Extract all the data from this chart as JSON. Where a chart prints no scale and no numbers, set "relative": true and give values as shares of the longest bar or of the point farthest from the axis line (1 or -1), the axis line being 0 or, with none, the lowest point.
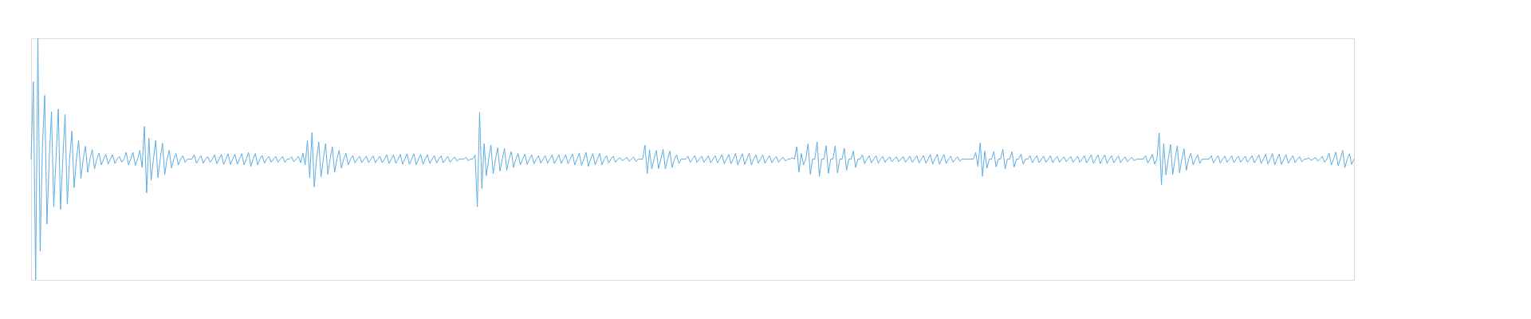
{
  "chart_data": {
    "type": "line",
    "relative": true,
    "tick_labels": false,
    "categories": [
      null,
      null,
      null,
      null,
      null,
      null,
      null,
      null,
      null,
      null,
      null,
      null,
      null,
      null,
      null,
      null,
      null,
      null,
      null,
      null,
      null,
      null,
      null,
      null,
      null,
      null,
      null,
      null,
      null,
      null,
      null,
      null,
      null,
      null,
      null,
      null,
      null,
      null,
      null,
      null,
      null,
      null,
      null,
      null,
      null,
      null,
      null,
      null,
      null,
      null,
      null,
      null,
      null,
      null,
      null,
      null,
      null,
      null,
      null,
      null,
      null,
      null,
      null,
      null,
      null,
      null,
      null,
      null,
      null,
      null,
      null,
      null,
      null,
      null,
      null,
      null,
      null,
      null,
      null,
      null,
      null,
      null,
      null,
      null,
      null,
      null,
      null,
      null,
      null,
      null,
      null,
      null,
      null,
      null,
      null,
      null,
      null,
      null,
      null,
      null,
      null,
      null,
      null,
      null,
      null,
      null,
      null,
      null,
      null,
      null,
      null,
      null,
      null,
      null,
      null,
      null,
      null,
      null,
      null,
      null,
      null,
      null,
      null,
      null,
      null,
      null,
      null,
      null,
      null,
      null,
      null,
      null,
      null,
      null,
      null,
      null,
      null,
      null,
      null,
      null,
      null,
      null,
      null,
      null,
      null,
      null,
      null,
      null,
      null,
      null,
      null,
      null,
      null,
      null,
      null,
      null,
      null,
      null,
      null,
      null,
      null,
      null,
      null,
      null,
      null,
      null,
      null,
      null,
      null,
      null,
      null,
      null,
      null,
      null,
      null,
      null,
      null,
      null,
      null,
      null,
      null,
      null,
      null,
      null,
      null,
      null,
      null,
      null,
      null,
      null,
      null,
      null,
      null,
      null,
      null,
      null,
      null,
      null,
      null,
      null,
      null,
      null,
      null,
      null,
      null,
      null,
      null,
      null,
      null,
      null,
      null,
      null,
      null,
      null,
      null,
      null,
      null,
      null,
      null,
      null,
      null,
      null,
      null,
      null,
      null,
      null,
      null,
      null,
      null,
      null,
      null,
      null,
      null,
      null,
      null,
      null,
      null,
      null,
      null,
      null,
      null,
      null,
      null,
      null,
      null,
      null,
      null,
      null,
      null,
      null,
      null,
      null,
      null,
      null,
      null,
      null,
      null,
      null,
      null,
      null,
      null,
      null,
      null,
      null,
      null,
      null,
      null,
      null,
      null,
      null,
      null,
      null,
      null,
      null,
      null,
      null,
      null,
      null,
      null,
      null,
      null,
      null,
      null,
      null,
      null,
      null,
      null,
      null,
      null,
      null,
      null,
      null,
      null,
      null,
      null,
      null,
      null,
      null,
      null,
      null,
      null,
      null,
      null,
      null,
      null,
      null,
      null,
      null,
      null,
      null,
      null,
      null,
      null,
      null,
      null,
      null,
      null,
      null,
      null,
      null,
      null,
      null,
      null,
      null,
      null,
      null,
      null,
      null,
      null,
      null,
      null,
      null,
      null,
      null,
      null,
      null,
      null,
      null,
      null,
      null,
      null,
      null,
      null,
      null,
      null,
      null,
      null,
      null,
      null,
      null,
      null,
      null,
      null,
      null,
      null,
      null,
      null,
      null,
      null,
      null,
      null,
      null,
      null,
      null,
      null,
      null,
      null,
      null,
      null,
      null,
      null,
      null,
      null,
      null,
      null,
      null,
      null,
      null,
      null,
      null,
      null,
      null,
      null,
      null,
      null,
      null,
      null,
      null,
      null,
      null,
      null,
      null,
      null,
      null,
      null,
      null,
      null,
      null,
      null,
      null,
      null,
      null,
      null,
      null,
      null,
      null,
      null,
      null,
      null,
      null,
      null,
      null,
      null,
      null,
      null,
      null,
      null,
      null,
      null,
      null,
      null,
      null,
      null,
      null,
      null,
      null,
      null,
      null,
      null,
      null,
      null,
      null,
      null,
      null,
      null,
      null,
      null,
      null,
      null,
      null,
      null,
      null,
      null,
      null,
      null,
      null,
      null,
      null,
      null,
      null,
      null,
      null,
      null,
      null,
      null,
      null,
      null,
      null,
      null,
      null,
      null,
      null,
      null,
      null,
      null,
      null,
      null,
      null,
      null,
      null,
      null,
      null,
      null,
      null,
      null,
      null,
      null,
      null,
      null,
      null,
      null,
      null,
      null,
      null,
      null,
      null,
      null,
      null,
      null,
      null,
      null,
      null,
      null,
      null,
      null,
      null,
      null,
      null,
      null,
      null,
      null,
      null,
      null,
      null,
      null,
      null,
      null,
      null,
      null,
      null,
      null,
      null,
      null,
      null,
      null,
      null,
      null,
      null,
      null,
      null,
      null,
      null,
      null,
      null,
      null,
      null,
      null,
      null,
      null,
      null,
      null,
      null,
      null,
      null,
      null,
      null,
      null,
      null,
      null,
      null,
      null,
      null,
      null,
      null,
      null,
      null,
      null,
      null,
      null,
      null,
      null,
      null,
      null,
      null,
      null,
      null,
      null,
      null,
      null,
      null,
      null,
      null,
      null,
      null,
      null,
      null,
      null,
      null,
      null,
      null,
      null,
      null,
      null,
      null,
      null,
      null,
      null,
      null,
      null,
      null,
      null,
      null,
      null,
      null,
      null
    ],
    "series": [
      {
        "color": "#5dade2",
        "values": [
          0.5,
          0.82,
          0,
          1.0,
          0.12,
          0.55,
          0.764,
          0.231,
          0.5,
          0.696,
          0.303,
          0.5,
          0.707,
          0.291,
          0.5,
          0.685,
          0.313,
          0.5,
          0.616,
          0.382,
          0.5,
          0.577,
          0.421,
          0.5,
          0.553,
          0.445,
          0.5,
          0.539,
          0.459,
          0.5,
          0.525,
          0.476,
          0.5,
          0.52,
          0.479,
          0.5,
          0.518,
          0.482,
          0.5,
          0.511,
          0.487,
          0.5,
          0.528,
          0.476,
          0.5,
          0.528,
          0.473,
          0.5,
          0.536,
          0.465,
          0.635,
          0.36,
          0.586,
          0.412,
          0.5,
          0.577,
          0.423,
          0.5,
          0.566,
          0.435,
          0.5,
          0.536,
          0.463,
          0.5,
          0.523,
          0.476,
          0.5,
          0.514,
          0.487,
          0.5,
          0.5,
          0.5,
          0.518,
          0.482,
          0.5,
          0.514,
          0.483,
          0.5,
          0.511,
          0.487,
          0.5,
          0.517,
          0.481,
          0.5,
          0.52,
          0.478,
          0.5,
          0.522,
          0.478,
          0.5,
          0.52,
          0.479,
          0.5,
          0.523,
          0.476,
          0.5,
          0.528,
          0.47,
          0.5,
          0.523,
          0.476,
          0.5,
          0.515,
          0.483,
          0.5,
          0.511,
          0.487,
          0.5,
          0.511,
          0.487,
          0.5,
          0.511,
          0.487,
          0.5,
          0.5,
          0.509,
          0.489,
          0.5,
          0.511,
          0.485,
          0.525,
          0.476,
          0.577,
          0.423,
          0.61,
          0.385,
          0.5,
          0.571,
          0.426,
          0.5,
          0.564,
          0.437,
          0.5,
          0.551,
          0.446,
          0.5,
          0.536,
          0.463,
          0.5,
          0.524,
          0.476,
          0.5,
          0.514,
          0.484,
          0.5,
          0.512,
          0.485,
          0.5,
          0.512,
          0.485,
          0.5,
          0.513,
          0.485,
          0.5,
          0.512,
          0.485,
          0.5,
          0.518,
          0.482,
          0.5,
          0.518,
          0.482,
          0.5,
          0.52,
          0.479,
          0.5,
          0.522,
          0.478,
          0.5,
          0.522,
          0.477,
          0.5,
          0.52,
          0.478,
          0.5,
          0.518,
          0.482,
          0.5,
          0.514,
          0.484,
          0.5,
          0.513,
          0.485,
          0.5,
          0.511,
          0.487,
          0.5,
          0.508,
          0.491,
          0.5,
          0.5,
          0.5,
          0.507,
          0.493,
          0.5,
          0.5,
          0.517,
          0.303,
          0.694,
          0.378,
          0.564,
          0.431,
          0.5,
          0.558,
          0.439,
          0.5,
          0.547,
          0.45,
          0.5,
          0.544,
          0.454,
          0.5,
          0.531,
          0.465,
          0.5,
          0.523,
          0.476,
          0.5,
          0.52,
          0.478,
          0.5,
          0.518,
          0.481,
          0.5,
          0.514,
          0.483,
          0.5,
          0.514,
          0.483,
          0.5,
          0.517,
          0.482,
          0.5,
          0.518,
          0.482,
          0.5,
          0.518,
          0.481,
          0.5,
          0.522,
          0.476,
          0.5,
          0.525,
          0.474,
          0.5,
          0.528,
          0.47,
          0.5,
          0.523,
          0.476,
          0.5,
          0.523,
          0.476,
          0.5,
          0.514,
          0.484,
          0.5,
          0.512,
          0.487,
          0.5,
          0.506,
          0.493,
          0.5,
          0.507,
          0.491,
          0.5,
          0.509,
          0.49,
          0.5,
          0.5,
          0.5,
          0.558,
          0.44,
          0.539,
          0.459,
          0.5,
          0.536,
          0.461,
          0.5,
          0.541,
          0.459,
          0.5,
          0.533,
          0.465,
          0.5,
          0.517,
          0.482,
          0.5,
          0.5,
          0.5,
          0.512,
          0.487,
          0.5,
          0.514,
          0.487,
          0.5,
          0.512,
          0.487,
          0.5,
          0.514,
          0.485,
          0.5,
          0.514,
          0.485,
          0.5,
          0.519,
          0.481,
          0.5,
          0.519,
          0.481,
          0.5,
          0.524,
          0.476,
          0.5,
          0.522,
          0.478,
          0.5,
          0.524,
          0.476,
          0.5,
          0.517,
          0.483,
          0.5,
          0.517,
          0.483,
          0.5,
          0.514,
          0.485,
          0.5,
          0.511,
          0.487,
          0.5,
          0.507,
          0.492,
          0.5,
          0.5,
          0.505,
          0.5,
          0.551,
          0.446,
          0.523,
          0.476,
          0.5,
          0.563,
          0.437,
          0.5,
          0.5,
          0.571,
          0.429,
          0.5,
          0.5,
          0.555,
          0.441,
          0.5,
          0.5,
          0.555,
          0.443,
          0.5,
          0.5,
          0.545,
          0.454,
          0.5,
          0.5,
          0.533,
          0.465,
          0.5,
          0.5,
          0.518,
          0.481,
          0.5,
          0.514,
          0.484,
          0.5,
          0.514,
          0.483,
          0.5,
          0.511,
          0.487,
          0.5,
          0.509,
          0.489,
          0.5,
          0.509,
          0.489,
          0.5,
          0.511,
          0.487,
          0.5,
          0.512,
          0.487,
          0.5,
          0.514,
          0.484,
          0.5,
          0.515,
          0.483,
          0.5,
          0.519,
          0.479,
          0.5,
          0.52,
          0.479,
          0.5,
          0.519,
          0.482,
          0.5,
          0.512,
          0.487,
          0.5,
          0.509,
          0.491,
          0.5,
          0.5,
          0.5,
          0.5,
          0.5,
          0.5,
          0.528,
          0.47,
          0.567,
          0.429,
          0.533,
          0.463,
          0.5,
          0.5,
          0.531,
          0.468,
          0.5,
          0.5,
          0.54,
          0.459,
          0.5,
          0.5,
          0.531,
          0.467,
          0.5,
          0.5,
          0.52,
          0.479,
          0.5,
          0.5,
          0.514,
          0.485,
          0.5,
          0.514,
          0.485,
          0.5,
          0.512,
          0.487,
          0.5,
          0.514,
          0.485,
          0.5,
          0.511,
          0.487,
          0.5,
          0.509,
          0.489,
          0.5,
          0.511,
          0.487,
          0.5,
          0.512,
          0.487,
          0.5,
          0.514,
          0.485,
          0.5,
          0.518,
          0.482,
          0.5,
          0.518,
          0.482,
          0.5,
          0.518,
          0.482,
          0.5,
          0.514,
          0.485,
          0.5,
          0.513,
          0.485,
          0.5,
          0.509,
          0.489,
          0.5,
          0.507,
          0.493,
          0.5,
          0.5,
          0.5,
          0.5,
          0.514,
          0.484,
          0.5,
          0.52,
          0.479,
          0.5,
          0.608,
          0.394,
          0.564,
          0.435,
          0.5,
          0.561,
          0.437,
          0.5,
          0.555,
          0.443,
          0.5,
          0.542,
          0.454,
          0.5,
          0.525,
          0.476,
          0.5,
          0.517,
          0.482,
          0.5,
          0.5,
          0.5,
          0.5,
          0.514,
          0.484,
          0.5,
          0.514,
          0.484,
          0.5,
          0.512,
          0.487,
          0.5,
          0.513,
          0.485,
          0.5,
          0.512,
          0.487,
          0.5,
          0.512,
          0.487,
          0.5,
          0.514,
          0.485,
          0.5,
          0.518,
          0.482,
          0.5,
          0.52,
          0.479,
          0.5,
          0.523,
          0.476,
          0.5,
          0.521,
          0.478,
          0.5,
          0.518,
          0.482,
          0.5,
          0.514,
          0.485,
          0.5,
          0.509,
          0.489,
          0.5,
          0.5,
          0.505,
          0.495,
          0.5,
          0.507,
          0.492,
          0.5,
          0.512,
          0.487,
          0.5,
          0.525,
          0.476,
          0.5,
          0.529,
          0.473,
          0.5,
          0.536,
          0.465,
          0.5,
          0.522,
          0.478,
          0.5
        ]
      }
    ]
  }
}
